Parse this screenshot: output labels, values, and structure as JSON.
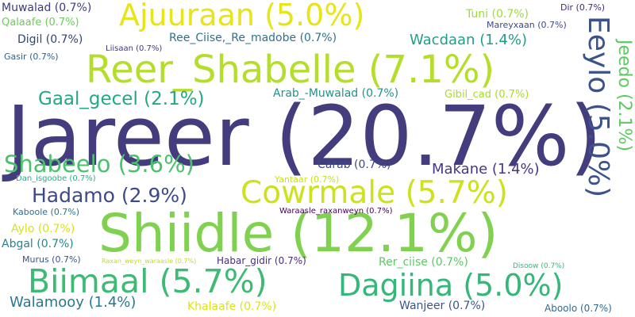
{
  "words": [
    {
      "text": "Jareer (20.7%)",
      "color": "#433d7d"
    },
    {
      "text": "Shiidle (12.1%)",
      "color": "#7fd14f"
    },
    {
      "text": "Reer_Shabelle (7.1%)",
      "color": "#b5de2c"
    },
    {
      "text": "Cowrmale (5.7%)",
      "color": "#cde11d"
    },
    {
      "text": "Biimaal (5.7%)",
      "color": "#3dbb74"
    },
    {
      "text": "Ajuuraan (5.0%)",
      "color": "#e7e419"
    },
    {
      "text": "Dagiina (5.0%)",
      "color": "#35b779"
    },
    {
      "text": "Eeylo (5.0%)",
      "color": "#3b528b"
    },
    {
      "text": "Shabeelo (3.6%)",
      "color": "#4ac16d"
    },
    {
      "text": "Hadamo (2.9%)",
      "color": "#3e4989"
    },
    {
      "text": "Gaal_gecel (2.1%)",
      "color": "#22a884"
    },
    {
      "text": "Jeedo (2.1%)",
      "color": "#5ec962"
    },
    {
      "text": "Wacdaan (1.4%)",
      "color": "#1f9e89"
    },
    {
      "text": "Makane (1.4%)",
      "color": "#443983"
    },
    {
      "text": "Walamooy (1.4%)",
      "color": "#2a788e"
    },
    {
      "text": "Muwalad (0.7%)",
      "color": "#3b3b7a"
    },
    {
      "text": "Qalaafe (0.7%)",
      "color": "#6ccd5a"
    },
    {
      "text": "Digil (0.7%)",
      "color": "#31446b"
    },
    {
      "text": "Gasir (0.7%)",
      "color": "#33638d"
    },
    {
      "text": "Liisaan (0.7%)",
      "color": "#453781"
    },
    {
      "text": "Ree_Ciise,_Re_madobe (0.7%)",
      "color": "#2c728e"
    },
    {
      "text": "Tuni (0.7%)",
      "color": "#9dd93b"
    },
    {
      "text": "Dir (0.7%)",
      "color": "#482878"
    },
    {
      "text": "Mareyxaan (0.7%)",
      "color": "#3e4a89"
    },
    {
      "text": "Arab_-Muwalad (0.7%)",
      "color": "#21918c"
    },
    {
      "text": "Gibil_cad (0.7%)",
      "color": "#a8db34"
    },
    {
      "text": "Carab (0.7%)",
      "color": "#3e4989"
    },
    {
      "text": "Dan_isgoobe (0.7%)",
      "color": "#28ae80"
    },
    {
      "text": "Yantaar (0.7%)",
      "color": "#c8e020"
    },
    {
      "text": "Kaboole (0.7%)",
      "color": "#2d708e"
    },
    {
      "text": "Aylo (0.7%)",
      "color": "#d8e219"
    },
    {
      "text": "Waraasle_raxanweyn (0.7%)",
      "color": "#440154"
    },
    {
      "text": "Abgal (0.7%)",
      "color": "#25858e"
    },
    {
      "text": "Murus (0.7%)",
      "color": "#3a548c"
    },
    {
      "text": "Raxan_weyn_waraasle (0.7%)",
      "color": "#bddf26"
    },
    {
      "text": "Habar_gidir (0.7%)",
      "color": "#472d7b"
    },
    {
      "text": "Rer_ciise (0.7%)",
      "color": "#5cc863"
    },
    {
      "text": "Disoow (0.7%)",
      "color": "#35b779"
    },
    {
      "text": "Khalaafe (0.7%)",
      "color": "#dde318"
    },
    {
      "text": "Wanjeer (0.7%)",
      "color": "#3a548c"
    },
    {
      "text": "Aboolo (0.7%)",
      "color": "#31688e"
    }
  ]
}
